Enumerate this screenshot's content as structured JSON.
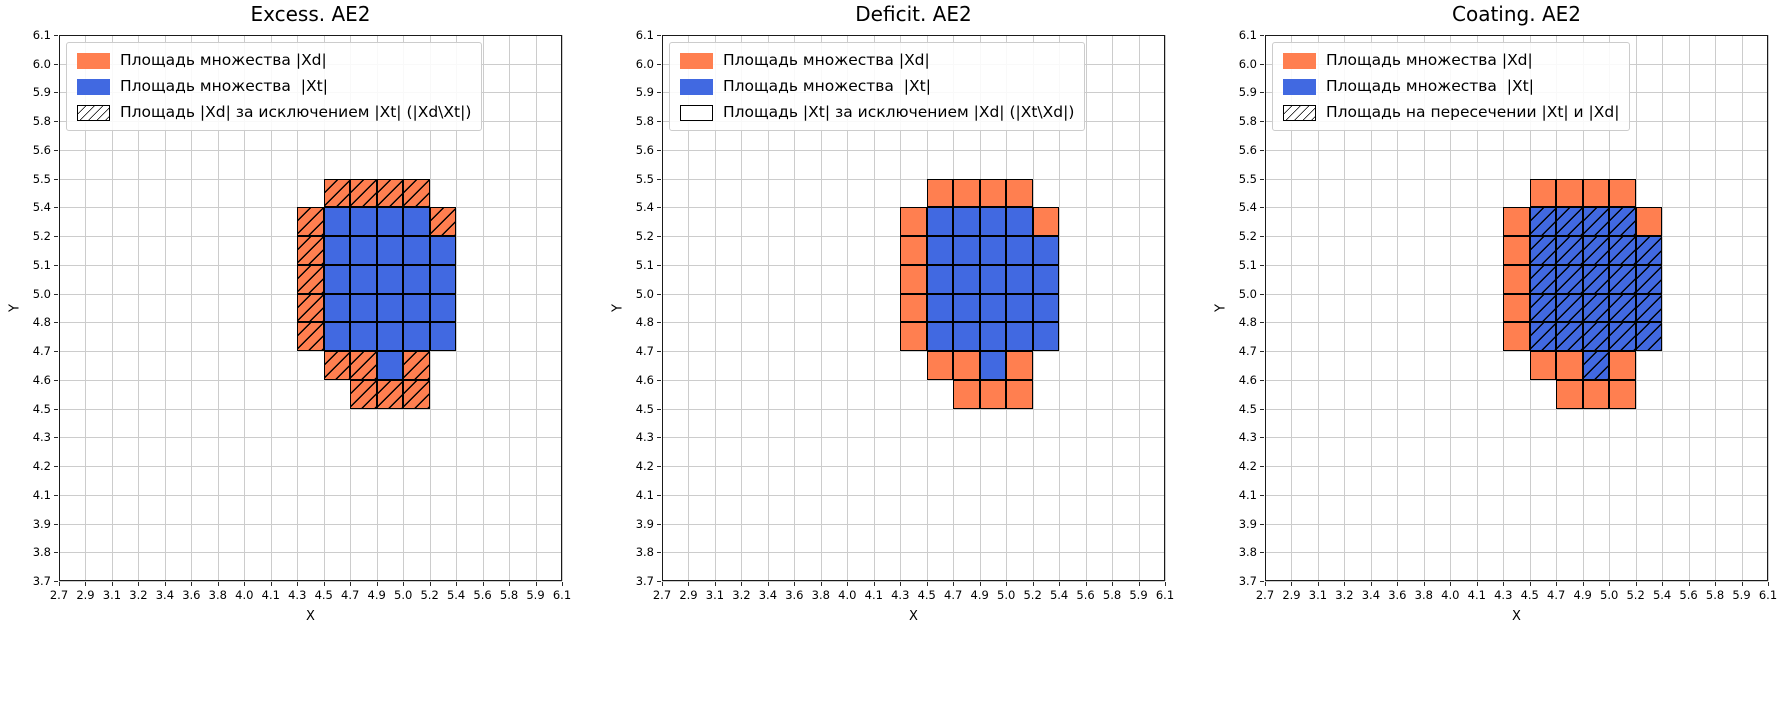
{
  "figure": {
    "background": "#ffffff"
  },
  "colors": {
    "xd_fill": "#FF7F50",
    "xt_fill": "#4169E1",
    "hatch": "#000000",
    "grid_line": "#cccccc",
    "cell_edge": "#000000",
    "legend_border": "#cccccc"
  },
  "regions": {
    "xd_only": [
      [
        10,
        5
      ],
      [
        11,
        5
      ],
      [
        12,
        5
      ],
      [
        13,
        5
      ],
      [
        9,
        6
      ],
      [
        14,
        6
      ],
      [
        9,
        7
      ],
      [
        9,
        8
      ],
      [
        9,
        9
      ],
      [
        9,
        10
      ],
      [
        10,
        11
      ],
      [
        11,
        11
      ],
      [
        13,
        11
      ],
      [
        11,
        12
      ],
      [
        12,
        12
      ],
      [
        13,
        12
      ]
    ],
    "xt": [
      [
        10,
        6
      ],
      [
        11,
        6
      ],
      [
        12,
        6
      ],
      [
        13,
        6
      ],
      [
        10,
        7
      ],
      [
        11,
        7
      ],
      [
        12,
        7
      ],
      [
        13,
        7
      ],
      [
        14,
        7
      ],
      [
        10,
        8
      ],
      [
        11,
        8
      ],
      [
        12,
        8
      ],
      [
        13,
        8
      ],
      [
        14,
        8
      ],
      [
        10,
        9
      ],
      [
        11,
        9
      ],
      [
        12,
        9
      ],
      [
        13,
        9
      ],
      [
        14,
        9
      ],
      [
        10,
        10
      ],
      [
        11,
        10
      ],
      [
        12,
        10
      ],
      [
        13,
        10
      ],
      [
        14,
        10
      ],
      [
        12,
        11
      ]
    ]
  },
  "chart_data": [
    {
      "type": "heatmap",
      "title": "Excess. AE2",
      "xlabel": "X",
      "ylabel": "Y",
      "xlim": [
        2.7,
        6.1
      ],
      "ylim": [
        3.7,
        6.1
      ],
      "grid": true,
      "legend_position": "upper-left",
      "x_ticks": [
        "2.7",
        "2.9",
        "3.1",
        "3.2",
        "3.4",
        "3.6",
        "3.8",
        "4.0",
        "4.1",
        "4.3",
        "4.5",
        "4.7",
        "4.9",
        "5.0",
        "5.2",
        "5.4",
        "5.6",
        "5.8",
        "5.9",
        "6.1"
      ],
      "y_ticks": [
        "6.1",
        "6.0",
        "5.9",
        "5.8",
        "5.6",
        "5.5",
        "5.4",
        "5.2",
        "5.1",
        "5.0",
        "4.8",
        "4.7",
        "4.6",
        "4.5",
        "4.3",
        "4.2",
        "4.1",
        "3.9",
        "3.8",
        "3.7"
      ],
      "legend": [
        {
          "label": "Площадь множества |Xd|",
          "swatch": "orange"
        },
        {
          "label": "Площадь множества  |Xt|",
          "swatch": "blue"
        },
        {
          "label": "Площадь |Xd| за исключением |Xt| (|Xd\\Xt|)",
          "swatch": "hatch"
        }
      ],
      "region_styles": {
        "xd_only": {
          "fill": "#FF7F50",
          "hatch": true
        },
        "xt": {
          "fill": "#4169E1",
          "hatch": false
        }
      }
    },
    {
      "type": "heatmap",
      "title": "Deficit. AE2",
      "xlabel": "X",
      "ylabel": "Y",
      "xlim": [
        2.7,
        6.1
      ],
      "ylim": [
        3.7,
        6.1
      ],
      "grid": true,
      "legend_position": "upper-left",
      "x_ticks": [
        "2.7",
        "2.9",
        "3.1",
        "3.2",
        "3.4",
        "3.6",
        "3.8",
        "4.0",
        "4.1",
        "4.3",
        "4.5",
        "4.7",
        "4.9",
        "5.0",
        "5.2",
        "5.4",
        "5.6",
        "5.8",
        "5.9",
        "6.1"
      ],
      "y_ticks": [
        "6.1",
        "6.0",
        "5.9",
        "5.8",
        "5.6",
        "5.5",
        "5.4",
        "5.2",
        "5.1",
        "5.0",
        "4.8",
        "4.7",
        "4.6",
        "4.5",
        "4.3",
        "4.2",
        "4.1",
        "3.9",
        "3.8",
        "3.7"
      ],
      "legend": [
        {
          "label": "Площадь множества |Xd|",
          "swatch": "orange"
        },
        {
          "label": "Площадь множества  |Xt|",
          "swatch": "blue"
        },
        {
          "label": "Площадь |Xt| за исключением |Xd| (|Xt\\Xd|)",
          "swatch": "empty"
        }
      ],
      "region_styles": {
        "xd_only": {
          "fill": "#FF7F50",
          "hatch": false
        },
        "xt": {
          "fill": "#4169E1",
          "hatch": false
        }
      }
    },
    {
      "type": "heatmap",
      "title": "Coating. AE2",
      "xlabel": "X",
      "ylabel": "Y",
      "xlim": [
        2.7,
        6.1
      ],
      "ylim": [
        3.7,
        6.1
      ],
      "grid": true,
      "legend_position": "upper-left",
      "x_ticks": [
        "2.7",
        "2.9",
        "3.1",
        "3.2",
        "3.4",
        "3.6",
        "3.8",
        "4.0",
        "4.1",
        "4.3",
        "4.5",
        "4.7",
        "4.9",
        "5.0",
        "5.2",
        "5.4",
        "5.6",
        "5.8",
        "5.9",
        "6.1"
      ],
      "y_ticks": [
        "6.1",
        "6.0",
        "5.9",
        "5.8",
        "5.6",
        "5.5",
        "5.4",
        "5.2",
        "5.1",
        "5.0",
        "4.8",
        "4.7",
        "4.6",
        "4.5",
        "4.3",
        "4.2",
        "4.1",
        "3.9",
        "3.8",
        "3.7"
      ],
      "legend": [
        {
          "label": "Площадь множества |Xd|",
          "swatch": "orange"
        },
        {
          "label": "Площадь множества  |Xt|",
          "swatch": "blue"
        },
        {
          "label": "Площадь на пересечении |Xt| и |Xd|",
          "swatch": "hatch"
        }
      ],
      "region_styles": {
        "xd_only": {
          "fill": "#FF7F50",
          "hatch": false
        },
        "xt": {
          "fill": "#4169E1",
          "hatch": true
        }
      }
    }
  ]
}
